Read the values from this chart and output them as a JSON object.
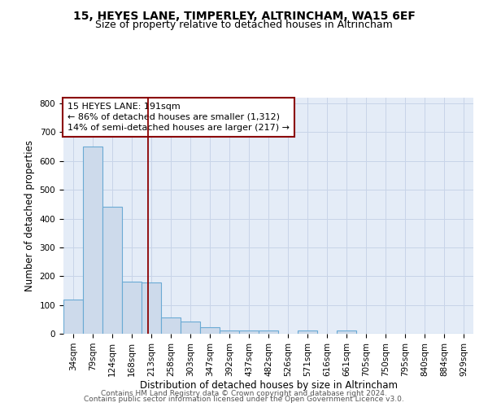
{
  "title1": "15, HEYES LANE, TIMPERLEY, ALTRINCHAM, WA15 6EF",
  "title2": "Size of property relative to detached houses in Altrincham",
  "xlabel": "Distribution of detached houses by size in Altrincham",
  "ylabel": "Number of detached properties",
  "categories": [
    "34sqm",
    "79sqm",
    "124sqm",
    "168sqm",
    "213sqm",
    "258sqm",
    "303sqm",
    "347sqm",
    "392sqm",
    "437sqm",
    "482sqm",
    "526sqm",
    "571sqm",
    "616sqm",
    "661sqm",
    "705sqm",
    "750sqm",
    "795sqm",
    "840sqm",
    "884sqm",
    "929sqm"
  ],
  "values": [
    120,
    650,
    440,
    180,
    178,
    57,
    43,
    22,
    12,
    12,
    10,
    0,
    10,
    0,
    10,
    0,
    0,
    0,
    0,
    0,
    0
  ],
  "bar_color": "#cddaeb",
  "bar_edge_color": "#6aaad4",
  "vline_x": 3.82,
  "vline_color": "#8b0000",
  "annotation_line1": "15 HEYES LANE: 191sqm",
  "annotation_line2": "← 86% of detached houses are smaller (1,312)",
  "annotation_line3": "14% of semi-detached houses are larger (217) →",
  "annotation_box_color": "white",
  "annotation_box_edge_color": "#8b0000",
  "ylim": [
    0,
    820
  ],
  "yticks": [
    0,
    100,
    200,
    300,
    400,
    500,
    600,
    700,
    800
  ],
  "grid_color": "#c8d4e8",
  "bg_color": "#e4ecf7",
  "footer_line1": "Contains HM Land Registry data © Crown copyright and database right 2024.",
  "footer_line2": "Contains public sector information licensed under the Open Government Licence v3.0.",
  "title1_fontsize": 10,
  "title2_fontsize": 9,
  "xlabel_fontsize": 8.5,
  "ylabel_fontsize": 8.5,
  "tick_fontsize": 7.5,
  "annotation_fontsize": 8,
  "footer_fontsize": 6.5
}
